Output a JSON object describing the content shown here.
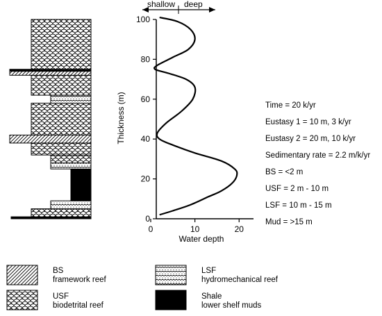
{
  "direction": {
    "shallow": "shallow",
    "deep": "deep"
  },
  "yaxis": {
    "label": "Thickness (m)",
    "ticks": [
      "0",
      "20",
      "40",
      "60",
      "80",
      "100"
    ]
  },
  "xaxis": {
    "label": "Water depth",
    "ticks": [
      "0",
      "10",
      "20"
    ]
  },
  "params": [
    "Time = 20 k/yr",
    "Eustasy 1 = 10 m, 3 k/yr",
    "Eustasy 2 = 20 m, 10 k/yr",
    "Sedimentary rate = 2.2 m/k/yr",
    "BS = <2 m",
    "USF = 2 m - 10 m",
    "LSF = 10 m - 15 m",
    "Mud = >15 m"
  ],
  "legend": [
    {
      "pattern": "BS",
      "code": "BS",
      "desc": "framework reef"
    },
    {
      "pattern": "USF",
      "code": "USF",
      "desc": "biodetrital reef"
    },
    {
      "pattern": "LSF",
      "code": "LSF",
      "desc": "hydromechanical reef"
    },
    {
      "pattern": "Shale",
      "code": "Shale",
      "desc": "lower shelf muds"
    }
  ],
  "chart_data": {
    "type": "line",
    "xlabel": "Water depth",
    "ylabel": "Thickness (m)",
    "xlim": [
      0,
      22
    ],
    "ylim": [
      0,
      100
    ],
    "series": [
      {
        "x": [
          2,
          5,
          9,
          13,
          16,
          18.5,
          19.5,
          19,
          16,
          10,
          5,
          2,
          1.5,
          3.5,
          7,
          9.5,
          10,
          8,
          4,
          1,
          1.5,
          5,
          8.5,
          10,
          9,
          6,
          2
        ],
        "y": [
          2,
          4,
          7,
          11,
          14,
          18,
          22,
          25,
          29,
          33,
          37,
          40,
          43,
          48,
          54,
          60,
          66,
          70,
          73,
          75,
          77,
          81,
          85,
          90,
          95,
          99,
          101
        ]
      }
    ],
    "column": [
      {
        "from": 0,
        "to": 1,
        "lith": "Shale"
      },
      {
        "from": 1,
        "to": 5,
        "lith": "USF"
      },
      {
        "from": 5,
        "to": 9,
        "lith": "LSF"
      },
      {
        "from": 9,
        "to": 25,
        "lith": "Shale"
      },
      {
        "from": 25,
        "to": 28,
        "lith": "LSF"
      },
      {
        "from": 28,
        "to": 32,
        "lith": "USF"
      },
      {
        "from": 32,
        "to": 38,
        "lith": "USF"
      },
      {
        "from": 38,
        "to": 42,
        "lith": "BS"
      },
      {
        "from": 42,
        "to": 58,
        "lith": "USF"
      },
      {
        "from": 58,
        "to": 62,
        "lith": "LSF"
      },
      {
        "from": 62,
        "to": 72,
        "lith": "USF"
      },
      {
        "from": 72,
        "to": 74,
        "lith": "BS"
      },
      {
        "from": 74,
        "to": 75,
        "lith": "Shale"
      },
      {
        "from": 75,
        "to": 100,
        "lith": "USF"
      }
    ]
  }
}
